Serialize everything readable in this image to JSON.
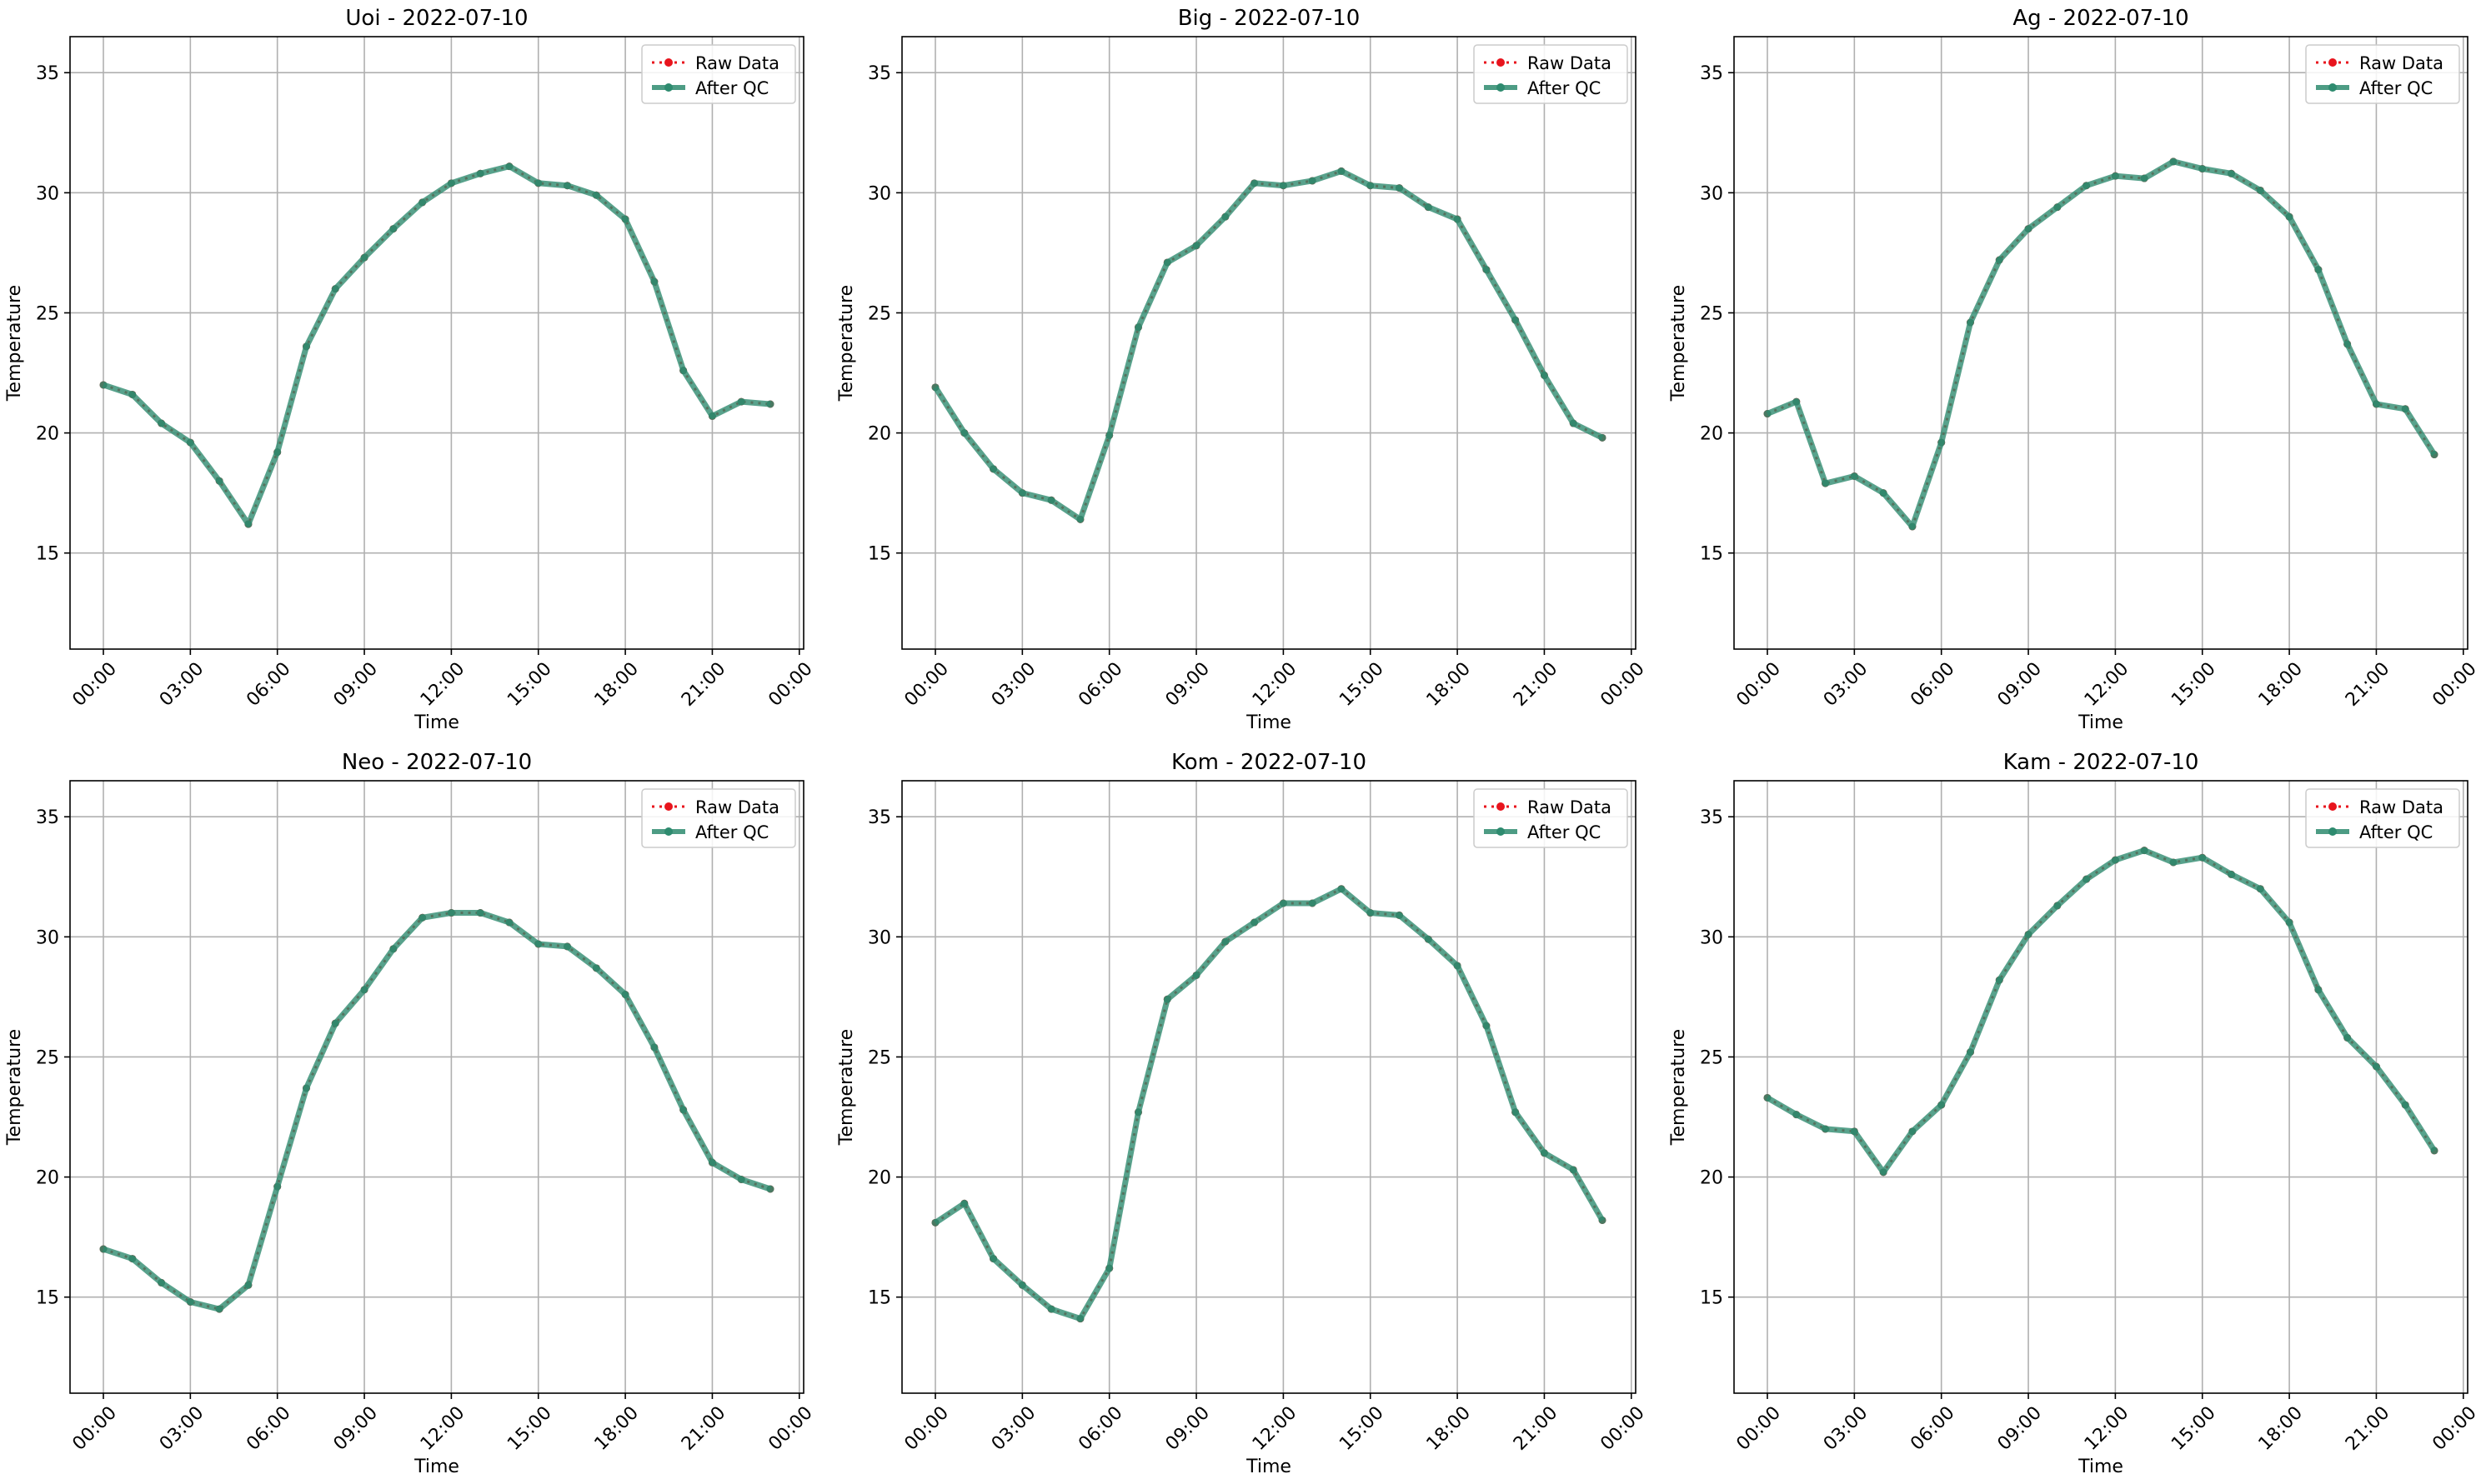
{
  "legend_labels": {
    "raw": "Raw Data",
    "qc": "After QC"
  },
  "colors": {
    "raw": "#e8141d",
    "qc": "#2e8b6f",
    "grid": "#b0b0b0"
  },
  "chart_data": [
    {
      "type": "line",
      "title": "Uoi - 2022-07-10",
      "xlabel": "Time",
      "ylabel": "Temperature",
      "xticks": [
        "00:00",
        "03:00",
        "06:00",
        "09:00",
        "12:00",
        "15:00",
        "18:00",
        "21:00",
        "00:00"
      ],
      "yticks": [
        15,
        20,
        25,
        30,
        35
      ],
      "ylim": [
        11,
        36.5
      ],
      "grid": true,
      "legend": "top-right",
      "x": [
        0,
        1,
        2,
        3,
        4,
        5,
        6,
        7,
        8,
        9,
        10,
        11,
        12,
        13,
        14,
        15,
        16,
        17,
        18,
        19,
        20,
        21,
        22,
        23
      ],
      "series": [
        {
          "name": "Raw Data",
          "values": [
            22.0,
            21.6,
            20.4,
            19.6,
            18.0,
            16.2,
            19.2,
            23.6,
            26.0,
            27.3,
            28.5,
            29.6,
            30.4,
            30.8,
            31.1,
            30.4,
            30.3,
            29.9,
            28.9,
            26.3,
            22.6,
            20.7,
            21.3,
            21.2
          ]
        },
        {
          "name": "After QC",
          "values": [
            22.0,
            21.6,
            20.4,
            19.6,
            18.0,
            16.2,
            19.2,
            23.6,
            26.0,
            27.3,
            28.5,
            29.6,
            30.4,
            30.8,
            31.1,
            30.4,
            30.3,
            29.9,
            28.9,
            26.3,
            22.6,
            20.7,
            21.3,
            21.2
          ]
        }
      ]
    },
    {
      "type": "line",
      "title": "Big - 2022-07-10",
      "xlabel": "Time",
      "ylabel": "Temperature",
      "xticks": [
        "00:00",
        "03:00",
        "06:00",
        "09:00",
        "12:00",
        "15:00",
        "18:00",
        "21:00",
        "00:00"
      ],
      "yticks": [
        15,
        20,
        25,
        30,
        35
      ],
      "ylim": [
        11,
        36.5
      ],
      "grid": true,
      "legend": "top-right",
      "x": [
        0,
        1,
        2,
        3,
        4,
        5,
        6,
        7,
        8,
        9,
        10,
        11,
        12,
        13,
        14,
        15,
        16,
        17,
        18,
        19,
        20,
        21,
        22,
        23
      ],
      "series": [
        {
          "name": "Raw Data",
          "values": [
            21.9,
            20.0,
            18.5,
            17.5,
            17.2,
            16.4,
            19.9,
            24.4,
            27.1,
            27.8,
            29.0,
            30.4,
            30.3,
            30.5,
            30.9,
            30.3,
            30.2,
            29.4,
            28.9,
            26.8,
            24.7,
            22.4,
            20.4,
            19.8
          ]
        },
        {
          "name": "After QC",
          "values": [
            21.9,
            20.0,
            18.5,
            17.5,
            17.2,
            16.4,
            19.9,
            24.4,
            27.1,
            27.8,
            29.0,
            30.4,
            30.3,
            30.5,
            30.9,
            30.3,
            30.2,
            29.4,
            28.9,
            26.8,
            24.7,
            22.4,
            20.4,
            19.8
          ]
        }
      ]
    },
    {
      "type": "line",
      "title": "Ag - 2022-07-10",
      "xlabel": "Time",
      "ylabel": "Temperature",
      "xticks": [
        "00:00",
        "03:00",
        "06:00",
        "09:00",
        "12:00",
        "15:00",
        "18:00",
        "21:00",
        "00:00"
      ],
      "yticks": [
        15,
        20,
        25,
        30,
        35
      ],
      "ylim": [
        11,
        36.5
      ],
      "grid": true,
      "legend": "top-right",
      "x": [
        0,
        1,
        2,
        3,
        4,
        5,
        6,
        7,
        8,
        9,
        10,
        11,
        12,
        13,
        14,
        15,
        16,
        17,
        18,
        19,
        20,
        21,
        22,
        23
      ],
      "series": [
        {
          "name": "Raw Data",
          "values": [
            20.8,
            21.3,
            17.9,
            18.2,
            17.5,
            16.1,
            19.6,
            24.6,
            27.2,
            28.5,
            29.4,
            30.3,
            30.7,
            30.6,
            31.3,
            31.0,
            30.8,
            30.1,
            29.0,
            26.8,
            23.7,
            21.2,
            21.0,
            19.1
          ]
        },
        {
          "name": "After QC",
          "values": [
            20.8,
            21.3,
            17.9,
            18.2,
            17.5,
            16.1,
            19.6,
            24.6,
            27.2,
            28.5,
            29.4,
            30.3,
            30.7,
            30.6,
            31.3,
            31.0,
            30.8,
            30.1,
            29.0,
            26.8,
            23.7,
            21.2,
            21.0,
            19.1
          ]
        }
      ]
    },
    {
      "type": "line",
      "title": "Neo - 2022-07-10",
      "xlabel": "Time",
      "ylabel": "Temperature",
      "xticks": [
        "00:00",
        "03:00",
        "06:00",
        "09:00",
        "12:00",
        "15:00",
        "18:00",
        "21:00",
        "00:00"
      ],
      "yticks": [
        15,
        20,
        25,
        30,
        35
      ],
      "ylim": [
        11,
        36.5
      ],
      "grid": true,
      "legend": "top-right",
      "x": [
        0,
        1,
        2,
        3,
        4,
        5,
        6,
        7,
        8,
        9,
        10,
        11,
        12,
        13,
        14,
        15,
        16,
        17,
        18,
        19,
        20,
        21,
        22,
        23
      ],
      "series": [
        {
          "name": "Raw Data",
          "values": [
            17.0,
            16.6,
            15.6,
            14.8,
            14.5,
            15.5,
            19.6,
            23.7,
            26.4,
            27.8,
            29.5,
            30.8,
            31.0,
            31.0,
            30.6,
            29.7,
            29.6,
            28.7,
            27.6,
            25.4,
            22.8,
            20.6,
            19.9,
            19.5
          ]
        },
        {
          "name": "After QC",
          "values": [
            17.0,
            16.6,
            15.6,
            14.8,
            14.5,
            15.5,
            19.6,
            23.7,
            26.4,
            27.8,
            29.5,
            30.8,
            31.0,
            31.0,
            30.6,
            29.7,
            29.6,
            28.7,
            27.6,
            25.4,
            22.8,
            20.6,
            19.9,
            19.5
          ]
        }
      ]
    },
    {
      "type": "line",
      "title": "Kom - 2022-07-10",
      "xlabel": "Time",
      "ylabel": "Temperature",
      "xticks": [
        "00:00",
        "03:00",
        "06:00",
        "09:00",
        "12:00",
        "15:00",
        "18:00",
        "21:00",
        "00:00"
      ],
      "yticks": [
        15,
        20,
        25,
        30,
        35
      ],
      "ylim": [
        11,
        36.5
      ],
      "grid": true,
      "legend": "top-right",
      "x": [
        0,
        1,
        2,
        3,
        4,
        5,
        6,
        7,
        8,
        9,
        10,
        11,
        12,
        13,
        14,
        15,
        16,
        17,
        18,
        19,
        20,
        21,
        22,
        23
      ],
      "series": [
        {
          "name": "Raw Data",
          "values": [
            18.1,
            18.9,
            16.6,
            15.5,
            14.5,
            14.1,
            16.2,
            22.7,
            27.4,
            28.4,
            29.8,
            30.6,
            31.4,
            31.4,
            32.0,
            31.0,
            30.9,
            29.9,
            28.8,
            26.3,
            22.7,
            21.0,
            20.3,
            18.2
          ]
        },
        {
          "name": "After QC",
          "values": [
            18.1,
            18.9,
            16.6,
            15.5,
            14.5,
            14.1,
            16.2,
            22.7,
            27.4,
            28.4,
            29.8,
            30.6,
            31.4,
            31.4,
            32.0,
            31.0,
            30.9,
            29.9,
            28.8,
            26.3,
            22.7,
            21.0,
            20.3,
            18.2
          ]
        }
      ]
    },
    {
      "type": "line",
      "title": "Kam - 2022-07-10",
      "xlabel": "Time",
      "ylabel": "Temperature",
      "xticks": [
        "00:00",
        "03:00",
        "06:00",
        "09:00",
        "12:00",
        "15:00",
        "18:00",
        "21:00",
        "00:00"
      ],
      "yticks": [
        15,
        20,
        25,
        30,
        35
      ],
      "ylim": [
        11,
        36.5
      ],
      "grid": true,
      "legend": "top-right",
      "x": [
        0,
        1,
        2,
        3,
        4,
        5,
        6,
        7,
        8,
        9,
        10,
        11,
        12,
        13,
        14,
        15,
        16,
        17,
        18,
        19,
        20,
        21,
        22,
        23
      ],
      "series": [
        {
          "name": "Raw Data",
          "values": [
            23.3,
            22.6,
            22.0,
            21.9,
            20.2,
            21.9,
            23.0,
            25.2,
            28.2,
            30.1,
            31.3,
            32.4,
            33.2,
            33.6,
            33.1,
            33.3,
            32.6,
            32.0,
            30.6,
            27.8,
            25.8,
            24.6,
            23.0,
            21.1
          ]
        },
        {
          "name": "After QC",
          "values": [
            23.3,
            22.6,
            22.0,
            21.9,
            20.2,
            21.9,
            23.0,
            25.2,
            28.2,
            30.1,
            31.3,
            32.4,
            33.2,
            33.6,
            33.1,
            33.3,
            32.6,
            32.0,
            30.6,
            27.8,
            25.8,
            24.6,
            23.0,
            21.1
          ]
        }
      ]
    }
  ]
}
